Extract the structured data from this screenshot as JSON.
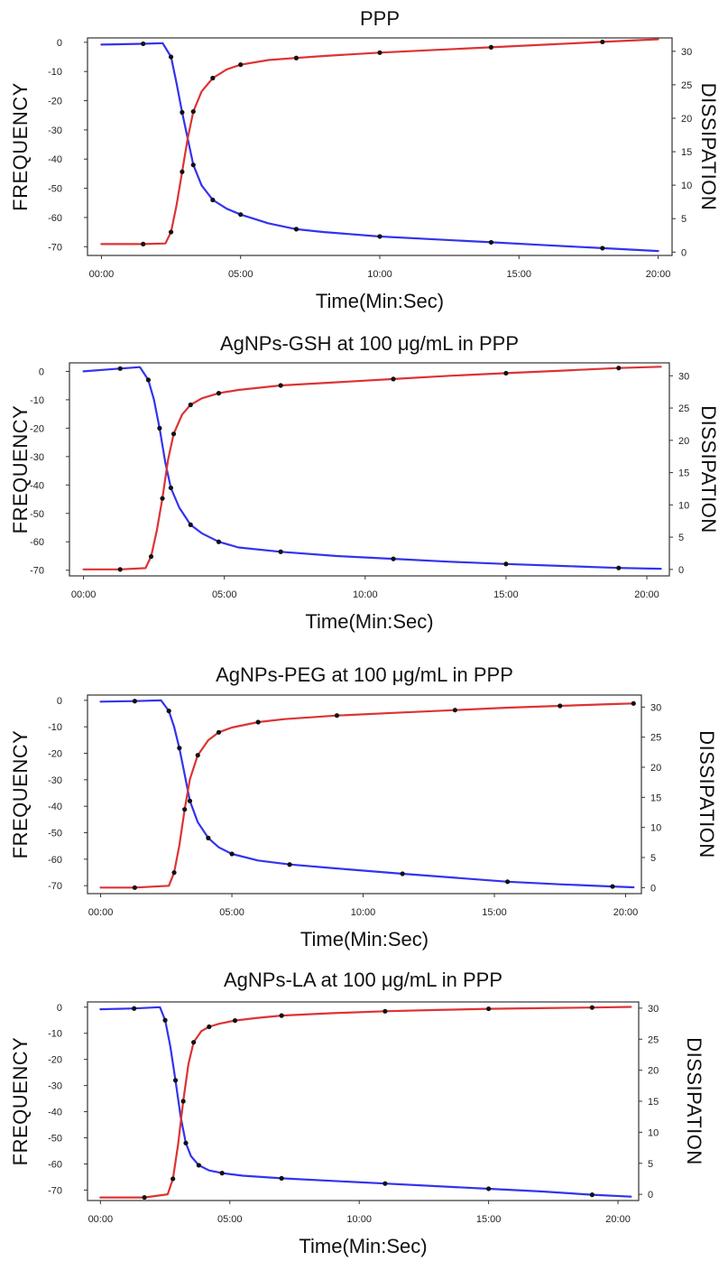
{
  "chart_data": [
    {
      "type": "line",
      "title": "PPP",
      "xlabel": "Time(Min:Sec)",
      "ylabel_left": "FREQUENCY",
      "ylabel_right": "DISSIPATION",
      "x_ticks": [
        "00:00",
        "05:00",
        "10:00",
        "15:00",
        "20:00"
      ],
      "y_left_ticks": [
        "0",
        "-10",
        "-20",
        "-30",
        "-40",
        "-50",
        "-60",
        "-70"
      ],
      "y_right_ticks": [
        "30",
        "25",
        "20",
        "15",
        "10",
        "5",
        "0"
      ],
      "xlim_min": [
        -0.5,
        20.5
      ],
      "ylim_left": [
        -73,
        1.5
      ],
      "ylim_right": [
        -0.5,
        32
      ],
      "series": [
        {
          "axis": "left",
          "color": "#3333ee",
          "x": [
            0.0,
            1.5,
            2.2,
            2.5,
            2.7,
            2.9,
            3.1,
            3.3,
            3.6,
            4.0,
            4.5,
            5.0,
            6.0,
            7.0,
            8.0,
            10.0,
            12.0,
            14.0,
            16.0,
            18.0,
            20.0
          ],
          "y": [
            -0.8,
            -0.5,
            -0.3,
            -5.0,
            -14.0,
            -24.0,
            -33.0,
            -42.0,
            -49.0,
            -54.0,
            -57.0,
            -59.0,
            -62.0,
            -64.0,
            -65.0,
            -66.5,
            -67.5,
            -68.5,
            -69.5,
            -70.5,
            -71.5
          ]
        },
        {
          "axis": "right",
          "color": "#dd3333",
          "x": [
            0.0,
            1.5,
            2.3,
            2.5,
            2.7,
            2.9,
            3.1,
            3.3,
            3.6,
            4.0,
            4.5,
            5.0,
            6.0,
            7.0,
            8.0,
            10.0,
            12.0,
            14.0,
            16.0,
            18.0,
            20.0
          ],
          "y": [
            1.2,
            1.2,
            1.3,
            3.0,
            7.0,
            12.0,
            17.0,
            21.0,
            24.0,
            26.0,
            27.3,
            28.0,
            28.7,
            29.0,
            29.3,
            29.8,
            30.2,
            30.6,
            31.0,
            31.4,
            31.8
          ]
        }
      ]
    },
    {
      "type": "line",
      "title": "AgNPs-GSH at 100 μg/mL in PPP",
      "xlabel": "Time(Min:Sec)",
      "ylabel_left": "FREQUENCY",
      "ylabel_right": "DISSIPATION",
      "x_ticks": [
        "00:00",
        "05:00",
        "10:00",
        "15:00",
        "20:00"
      ],
      "y_left_ticks": [
        "0",
        "-10",
        "-20",
        "-30",
        "-40",
        "-50",
        "-60",
        "-70"
      ],
      "y_right_ticks": [
        "30",
        "25",
        "20",
        "15",
        "10",
        "5",
        "0"
      ],
      "xlim_min": [
        -0.5,
        20.8
      ],
      "ylim_left": [
        -72,
        3
      ],
      "ylim_right": [
        -1,
        32
      ],
      "series": [
        {
          "axis": "left",
          "color": "#3333ee",
          "x": [
            0.0,
            1.3,
            2.0,
            2.3,
            2.5,
            2.7,
            2.9,
            3.1,
            3.4,
            3.8,
            4.2,
            4.8,
            5.5,
            7.0,
            9.0,
            11.0,
            13.0,
            15.0,
            17.0,
            19.0,
            20.5
          ],
          "y": [
            0.0,
            1.0,
            1.5,
            -3.0,
            -10.0,
            -20.0,
            -32.0,
            -41.0,
            -48.0,
            -54.0,
            -57.0,
            -60.0,
            -62.0,
            -63.5,
            -65.0,
            -66.0,
            -67.0,
            -67.8,
            -68.5,
            -69.2,
            -69.5
          ]
        },
        {
          "axis": "right",
          "color": "#dd3333",
          "x": [
            0.0,
            1.3,
            2.2,
            2.4,
            2.6,
            2.8,
            3.0,
            3.2,
            3.5,
            3.8,
            4.2,
            4.8,
            5.5,
            7.0,
            9.0,
            11.0,
            13.0,
            15.0,
            17.0,
            19.0,
            20.5
          ],
          "y": [
            0.0,
            0.0,
            0.2,
            2.0,
            6.0,
            11.0,
            17.0,
            21.0,
            24.0,
            25.5,
            26.5,
            27.3,
            27.8,
            28.5,
            29.0,
            29.5,
            30.0,
            30.4,
            30.8,
            31.2,
            31.4
          ]
        }
      ]
    },
    {
      "type": "line",
      "title": "AgNPs-PEG at 100 μg/mL in PPP",
      "xlabel": "Time(Min:Sec)",
      "ylabel_left": "FREQUENCY",
      "ylabel_right": "DISSIPATION",
      "x_ticks": [
        "00:00",
        "05:00",
        "10:00",
        "15:00",
        "20:00"
      ],
      "y_left_ticks": [
        "0",
        "-10",
        "-20",
        "-30",
        "-40",
        "-50",
        "-60",
        "-70"
      ],
      "y_right_ticks": [
        "30",
        "25",
        "20",
        "15",
        "10",
        "5",
        "0"
      ],
      "xlim_min": [
        -0.5,
        20.6
      ],
      "ylim_left": [
        -73,
        2
      ],
      "ylim_right": [
        -1,
        32
      ],
      "series": [
        {
          "axis": "left",
          "color": "#3333ee",
          "x": [
            0.0,
            1.3,
            2.3,
            2.6,
            2.8,
            3.0,
            3.2,
            3.4,
            3.7,
            4.1,
            4.5,
            5.0,
            6.0,
            7.2,
            9.0,
            11.5,
            13.5,
            15.5,
            17.5,
            19.5,
            20.3
          ],
          "y": [
            -0.5,
            -0.3,
            0.0,
            -4.0,
            -10.0,
            -18.0,
            -28.0,
            -38.0,
            -46.0,
            -52.0,
            -55.5,
            -58.0,
            -60.5,
            -62.0,
            -63.5,
            -65.5,
            -67.0,
            -68.5,
            -69.5,
            -70.3,
            -70.6
          ]
        },
        {
          "axis": "right",
          "color": "#dd3333",
          "x": [
            0.0,
            1.3,
            2.6,
            2.8,
            3.0,
            3.2,
            3.4,
            3.7,
            4.1,
            4.5,
            5.0,
            6.0,
            7.0,
            9.0,
            11.5,
            13.5,
            15.5,
            17.5,
            19.5,
            20.3
          ],
          "y": [
            0.0,
            0.0,
            0.3,
            2.5,
            7.0,
            13.0,
            18.0,
            22.0,
            24.5,
            25.8,
            26.6,
            27.5,
            28.0,
            28.6,
            29.1,
            29.5,
            29.9,
            30.2,
            30.5,
            30.6
          ]
        }
      ]
    },
    {
      "type": "line",
      "title": "AgNPs-LA at 100 μg/mL in PPP",
      "xlabel": "Time(Min:Sec)",
      "ylabel_left": "FREQUENCY",
      "ylabel_right": "DISSIPATION",
      "x_ticks": [
        "00:00",
        "05:00",
        "10:00",
        "15:00",
        "20:00"
      ],
      "y_left_ticks": [
        "0",
        "-10",
        "-20",
        "-30",
        "-40",
        "-50",
        "-60",
        "-70"
      ],
      "y_right_ticks": [
        "30",
        "25",
        "20",
        "15",
        "10",
        "5",
        "0"
      ],
      "xlim_min": [
        -0.5,
        20.8
      ],
      "ylim_left": [
        -74,
        2
      ],
      "ylim_right": [
        -1,
        31
      ],
      "series": [
        {
          "axis": "left",
          "color": "#3333ee",
          "x": [
            0.0,
            1.3,
            2.3,
            2.5,
            2.7,
            2.9,
            3.1,
            3.3,
            3.5,
            3.8,
            4.2,
            4.7,
            5.5,
            7.0,
            9.0,
            11.0,
            13.0,
            15.0,
            17.0,
            19.0,
            20.5
          ],
          "y": [
            -0.8,
            -0.5,
            0.0,
            -5.0,
            -15.0,
            -28.0,
            -42.0,
            -52.0,
            -57.0,
            -60.5,
            -62.5,
            -63.5,
            -64.5,
            -65.5,
            -66.5,
            -67.5,
            -68.5,
            -69.5,
            -70.5,
            -71.8,
            -72.5
          ]
        },
        {
          "axis": "right",
          "color": "#dd3333",
          "x": [
            0.0,
            1.7,
            2.6,
            2.8,
            3.0,
            3.2,
            3.4,
            3.6,
            3.9,
            4.2,
            4.6,
            5.2,
            6.0,
            7.0,
            9.0,
            11.0,
            13.0,
            15.0,
            17.0,
            19.0,
            20.5
          ],
          "y": [
            -0.5,
            -0.5,
            0.0,
            2.5,
            8.0,
            15.0,
            21.0,
            24.5,
            26.3,
            27.0,
            27.5,
            28.0,
            28.4,
            28.8,
            29.2,
            29.5,
            29.7,
            29.9,
            30.0,
            30.1,
            30.2
          ]
        }
      ]
    }
  ]
}
